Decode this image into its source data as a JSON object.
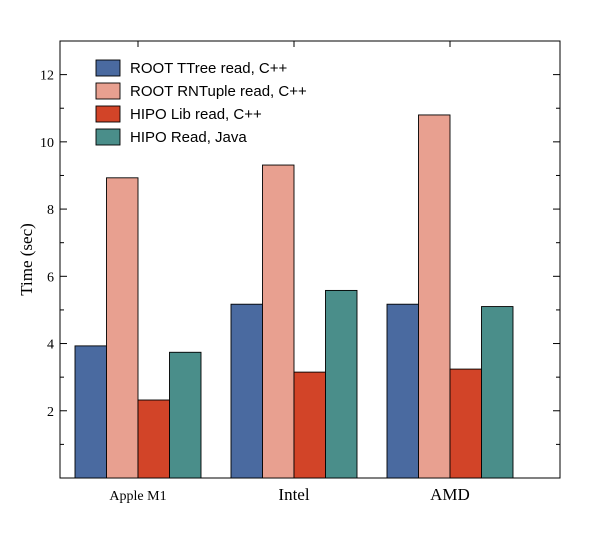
{
  "chart_data": {
    "type": "bar",
    "title": "",
    "xlabel": "",
    "ylabel": "Time (sec)",
    "categories": [
      "Apple M1",
      "Intel",
      "AMD"
    ],
    "series": [
      {
        "name": "ROOT TTree read, C++",
        "color": "#4a6aa0",
        "values": [
          3.93,
          5.17,
          5.17
        ]
      },
      {
        "name": "ROOT RNTuple read, C++",
        "color": "#e8a090",
        "values": [
          8.93,
          9.31,
          10.8
        ]
      },
      {
        "name": "HIPO Lib read, C++",
        "color": "#d24428",
        "values": [
          2.32,
          3.15,
          3.24
        ]
      },
      {
        "name": "HIPO Read, Java",
        "color": "#4a8e8a",
        "values": [
          3.74,
          5.58,
          5.1
        ]
      }
    ],
    "ylim": [
      0,
      13
    ],
    "yticks": [
      2,
      4,
      6,
      8,
      10,
      12
    ],
    "grid": false,
    "legend_position": "top-left"
  }
}
